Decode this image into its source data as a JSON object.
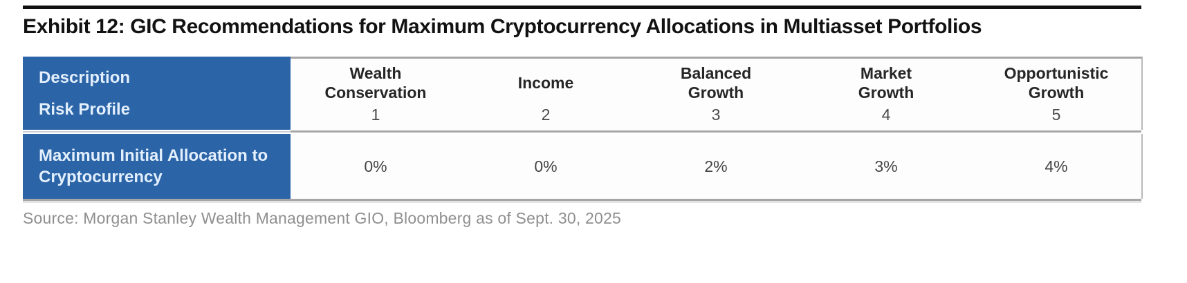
{
  "title": "Exhibit 12: GIC Recommendations for Maximum Cryptocurrency Allocations in Multiasset Portfolios",
  "table": {
    "row_labels": {
      "description": "Description",
      "risk_profile": "Risk Profile",
      "allocation": "Maximum Initial Allocation to Cryptocurrency"
    },
    "columns": [
      {
        "label": "Wealth\nConservation",
        "risk": "1",
        "allocation": "0%"
      },
      {
        "label": "Income",
        "risk": "2",
        "allocation": "0%"
      },
      {
        "label": "Balanced\nGrowth",
        "risk": "3",
        "allocation": "2%"
      },
      {
        "label": "Market\nGrowth",
        "risk": "4",
        "allocation": "3%"
      },
      {
        "label": "Opportunistic\nGrowth",
        "risk": "5",
        "allocation": "4%"
      }
    ]
  },
  "source": "Source: Morgan Stanley Wealth Management GIO, Bloomberg as of Sept. 30, 2025",
  "colors": {
    "header_blue": "#2b64a7",
    "header_text": "#e3effc",
    "rule_black": "#101010",
    "border_gray": "#a6a6a6",
    "source_gray": "#8f8f8f"
  },
  "chart_data": {
    "type": "table",
    "title": "Exhibit 12: GIC Recommendations for Maximum Cryptocurrency Allocations in Multiasset Portfolios",
    "columns": [
      "Description",
      "Wealth Conservation",
      "Income",
      "Balanced Growth",
      "Market Growth",
      "Opportunistic Growth"
    ],
    "rows": [
      [
        "Risk Profile",
        "1",
        "2",
        "3",
        "4",
        "5"
      ],
      [
        "Maximum Initial Allocation to Cryptocurrency",
        "0%",
        "0%",
        "2%",
        "3%",
        "4%"
      ]
    ]
  }
}
